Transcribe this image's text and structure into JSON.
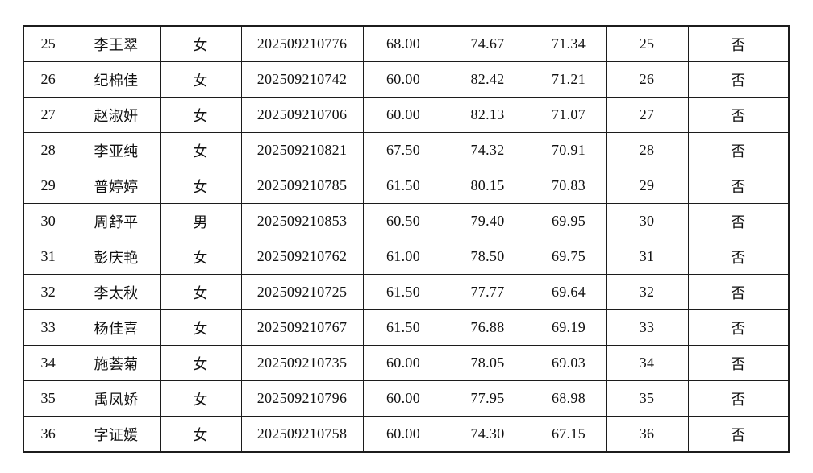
{
  "document": {
    "kind": "score-list-table-fragment",
    "visible_header": false
  },
  "colors": {
    "background": "#ffffff",
    "border": "#1c1c1c",
    "text": "#111111"
  },
  "table": {
    "rows": [
      [
        "25",
        "李王翠",
        "女",
        "202509210776",
        "68.00",
        "74.67",
        "71.34",
        "25",
        "否"
      ],
      [
        "26",
        "纪棉佳",
        "女",
        "202509210742",
        "60.00",
        "82.42",
        "71.21",
        "26",
        "否"
      ],
      [
        "27",
        "赵淑妍",
        "女",
        "202509210706",
        "60.00",
        "82.13",
        "71.07",
        "27",
        "否"
      ],
      [
        "28",
        "李亚纯",
        "女",
        "202509210821",
        "67.50",
        "74.32",
        "70.91",
        "28",
        "否"
      ],
      [
        "29",
        "普婷婷",
        "女",
        "202509210785",
        "61.50",
        "80.15",
        "70.83",
        "29",
        "否"
      ],
      [
        "30",
        "周舒平",
        "男",
        "202509210853",
        "60.50",
        "79.40",
        "69.95",
        "30",
        "否"
      ],
      [
        "31",
        "彭庆艳",
        "女",
        "202509210762",
        "61.00",
        "78.50",
        "69.75",
        "31",
        "否"
      ],
      [
        "32",
        "李太秋",
        "女",
        "202509210725",
        "61.50",
        "77.77",
        "69.64",
        "32",
        "否"
      ],
      [
        "33",
        "杨佳喜",
        "女",
        "202509210767",
        "61.50",
        "76.88",
        "69.19",
        "33",
        "否"
      ],
      [
        "34",
        "施荟菊",
        "女",
        "202509210735",
        "60.00",
        "78.05",
        "69.03",
        "34",
        "否"
      ],
      [
        "35",
        "禹凤娇",
        "女",
        "202509210796",
        "60.00",
        "77.95",
        "68.98",
        "35",
        "否"
      ],
      [
        "36",
        "字证媛",
        "女",
        "202509210758",
        "60.00",
        "74.30",
        "67.15",
        "36",
        "否"
      ]
    ]
  }
}
